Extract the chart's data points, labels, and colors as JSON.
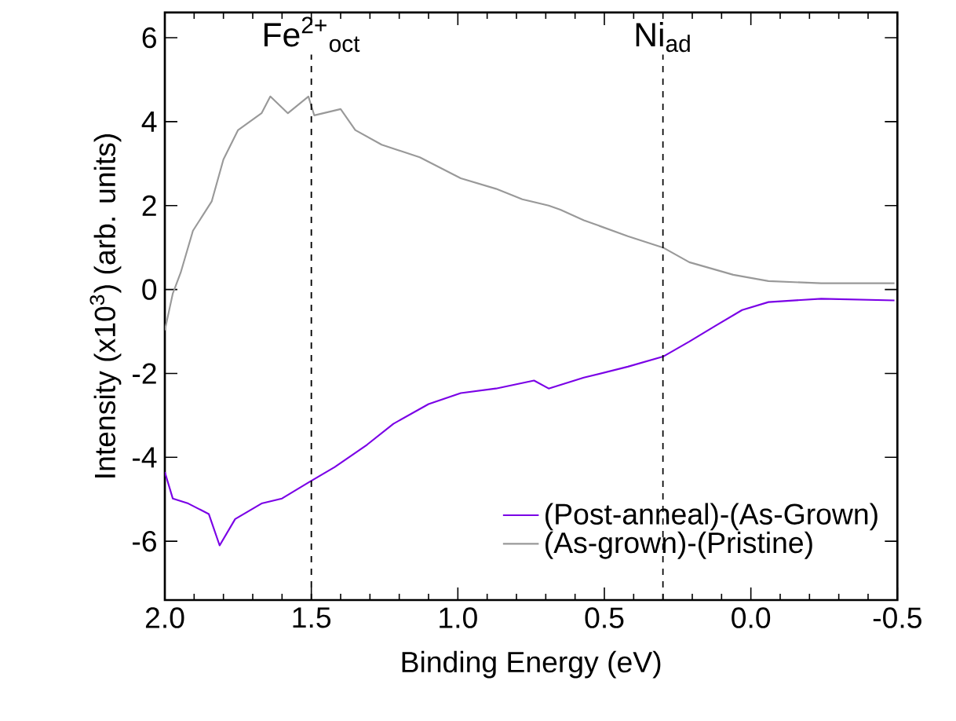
{
  "chart_data": {
    "type": "line",
    "xlabel": "Binding Energy (eV)",
    "ylabel": "Intensity (x10$^{3}$) (arb. units)",
    "xlim": [
      2.0,
      -0.5
    ],
    "ylim": [
      -7.4,
      6.6
    ],
    "xticks": [
      {
        "value": 2.0,
        "label": "2.0"
      },
      {
        "value": 1.5,
        "label": "1.5"
      },
      {
        "value": 1.0,
        "label": "1.0"
      },
      {
        "value": 0.5,
        "label": "0.5"
      },
      {
        "value": 0.0,
        "label": "0.0"
      },
      {
        "value": -0.5,
        "label": "-0.5"
      }
    ],
    "yticks": [
      -6,
      -4,
      -2,
      0,
      2,
      4,
      6
    ],
    "grid": false,
    "legend": "bottom right",
    "marker": "none",
    "line_style": "solid",
    "ref_lines": [
      {
        "axis": "x",
        "value": 1.5,
        "label": "Fe$^{2+}$$_{oct}$",
        "color": "#000000",
        "line_style": "dashed"
      },
      {
        "axis": "x",
        "value": 0.3,
        "label": "Ni$_{ad}$",
        "color": "#000000",
        "line_style": "dashed"
      }
    ],
    "series": [
      {
        "name": "(Post-anneal)-(As-Grown)",
        "color": "#7a00e6",
        "x": [
          2.0,
          1.973,
          1.92,
          1.85,
          1.813,
          1.76,
          1.67,
          1.6,
          1.51,
          1.42,
          1.31,
          1.22,
          1.1,
          0.99,
          0.87,
          0.74,
          0.69,
          0.57,
          0.42,
          0.3,
          0.21,
          0.12,
          0.03,
          -0.06,
          -0.24,
          -0.49
        ],
        "values": [
          -4.35,
          -4.98,
          -5.1,
          -5.35,
          -6.1,
          -5.47,
          -5.1,
          -4.98,
          -4.6,
          -4.23,
          -3.7,
          -3.2,
          -2.73,
          -2.47,
          -2.36,
          -2.17,
          -2.36,
          -2.1,
          -1.84,
          -1.6,
          -1.24,
          -0.86,
          -0.49,
          -0.3,
          -0.22,
          -0.26
        ]
      },
      {
        "name": "(As-grown)-(Pristine)",
        "color": "#999999",
        "x": [
          2.0,
          1.973,
          1.946,
          1.904,
          1.84,
          1.8,
          1.75,
          1.67,
          1.64,
          1.58,
          1.51,
          1.49,
          1.4,
          1.35,
          1.26,
          1.13,
          0.99,
          0.87,
          0.78,
          0.69,
          0.65,
          0.57,
          0.42,
          0.3,
          0.21,
          0.06,
          -0.06,
          -0.24,
          -0.49
        ],
        "values": [
          -0.97,
          -0.1,
          0.4,
          1.4,
          2.1,
          3.1,
          3.8,
          4.2,
          4.6,
          4.2,
          4.6,
          4.15,
          4.3,
          3.8,
          3.45,
          3.15,
          2.65,
          2.4,
          2.15,
          2.0,
          1.9,
          1.65,
          1.27,
          1.0,
          0.65,
          0.35,
          0.2,
          0.15,
          0.15
        ]
      }
    ]
  }
}
